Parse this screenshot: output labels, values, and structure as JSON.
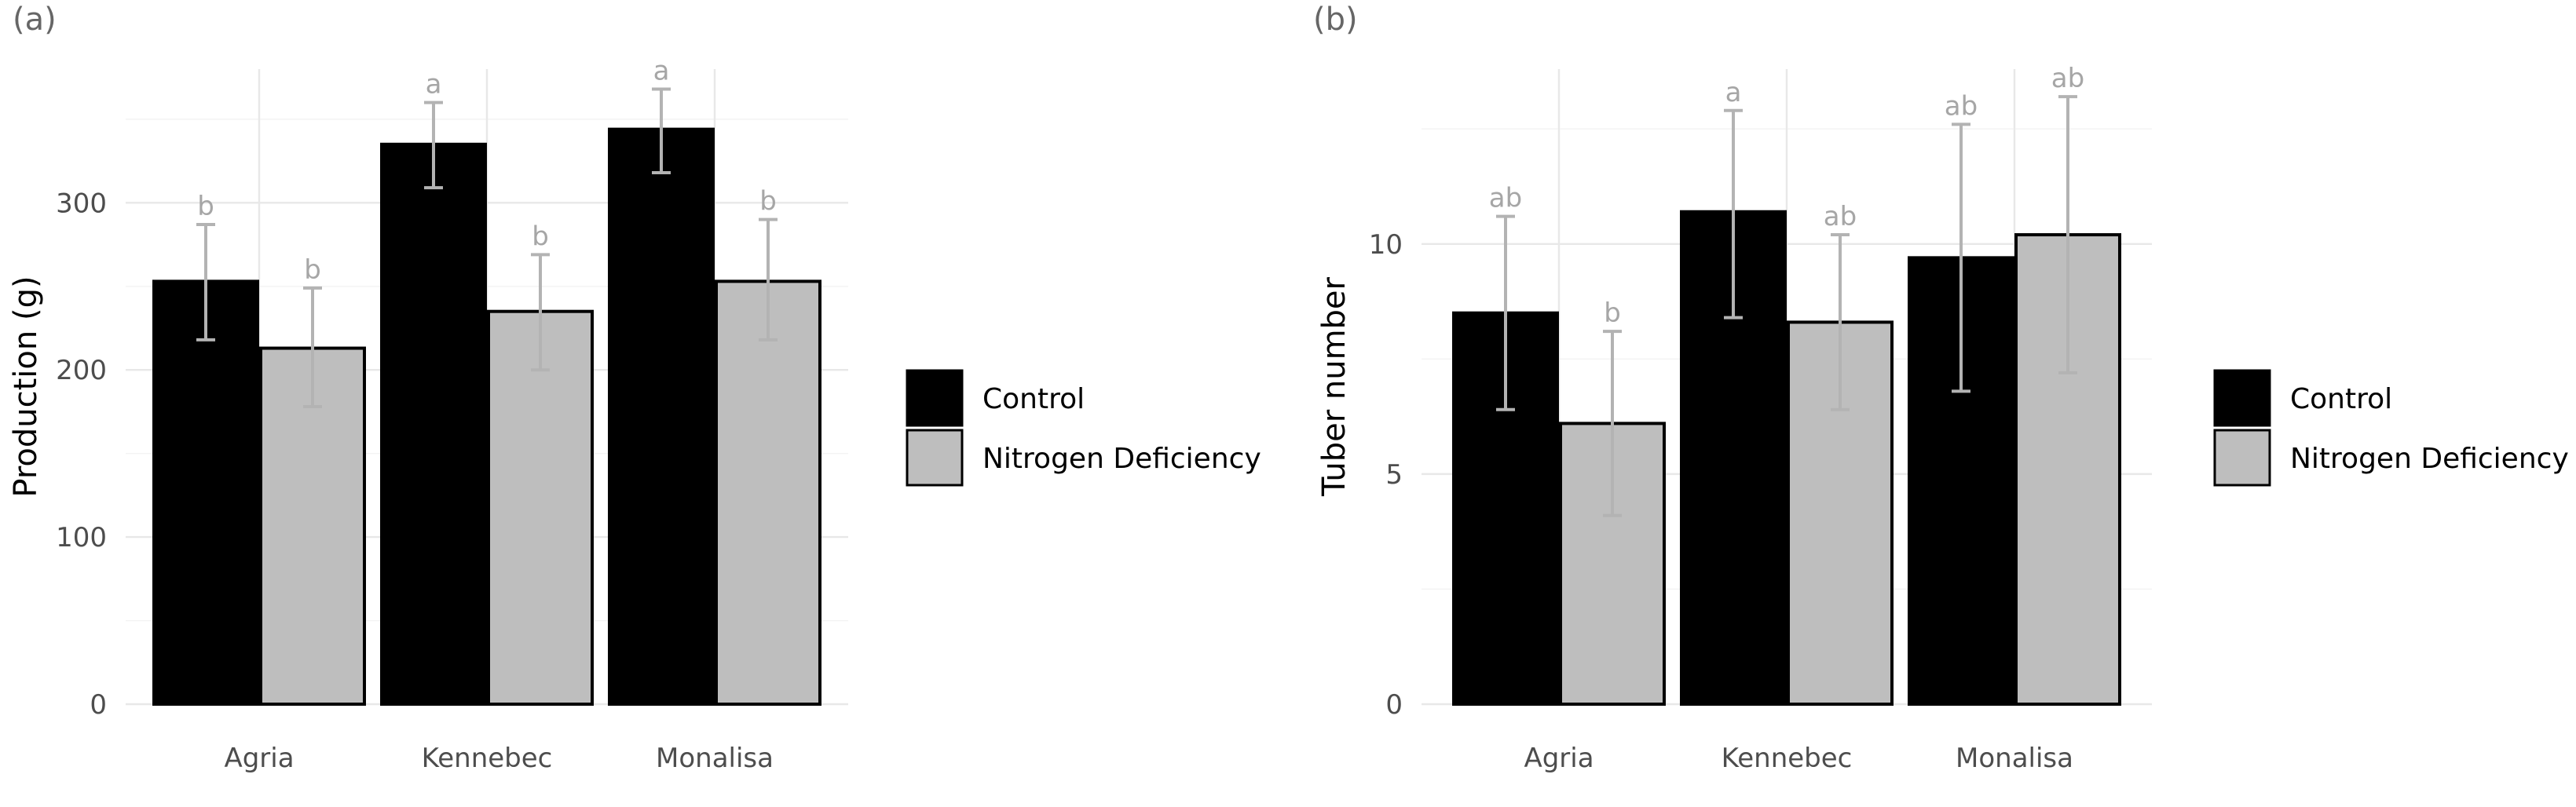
{
  "chart_data": [
    {
      "type": "bar",
      "panel_label": "(a)",
      "title": "",
      "xlabel": "",
      "ylabel": "Production (g)",
      "categories": [
        "Agria",
        "Kennebec",
        "Monalisa"
      ],
      "ylim": [
        0,
        380
      ],
      "yticks": [
        0,
        100,
        200,
        300
      ],
      "ytick_labels": [
        "0",
        "100",
        "200",
        "300"
      ],
      "series": [
        {
          "name": "Control",
          "color": "#000000",
          "values": [
            253,
            335,
            344
          ],
          "err_low": [
            218,
            309,
            318
          ],
          "err_high": [
            287,
            360,
            368
          ],
          "labels": [
            "b",
            "a",
            "a"
          ]
        },
        {
          "name": "Nitrogen Deficiency",
          "color": "#bebebe",
          "values": [
            213,
            235,
            253
          ],
          "err_low": [
            178,
            200,
            218
          ],
          "err_high": [
            249,
            269,
            290
          ],
          "labels": [
            "b",
            "b",
            "b"
          ]
        }
      ],
      "legend": {
        "position": "right",
        "entries": [
          "Control",
          "Nitrogen Deficiency"
        ]
      },
      "grid": true
    },
    {
      "type": "bar",
      "panel_label": "(b)",
      "title": "",
      "xlabel": "",
      "ylabel": "Tuber number",
      "categories": [
        "Agria",
        "Kennebec",
        "Monalisa"
      ],
      "ylim": [
        0,
        13.8
      ],
      "yticks": [
        0,
        5,
        10
      ],
      "ytick_labels": [
        "0",
        "5",
        "10"
      ],
      "series": [
        {
          "name": "Control",
          "color": "#000000",
          "values": [
            8.5,
            10.7,
            9.7
          ],
          "err_low": [
            6.4,
            8.4,
            6.8
          ],
          "err_high": [
            10.6,
            12.9,
            12.6
          ],
          "labels": [
            "ab",
            "a",
            "ab"
          ]
        },
        {
          "name": "Nitrogen Deficiency",
          "color": "#bebebe",
          "values": [
            6.1,
            8.3,
            10.2
          ],
          "err_low": [
            4.1,
            6.4,
            7.2
          ],
          "err_high": [
            8.1,
            10.2,
            13.2
          ],
          "labels": [
            "b",
            "ab",
            "ab"
          ]
        }
      ],
      "legend": {
        "position": "right",
        "entries": [
          "Control",
          "Nitrogen Deficiency"
        ]
      },
      "grid": true
    }
  ]
}
